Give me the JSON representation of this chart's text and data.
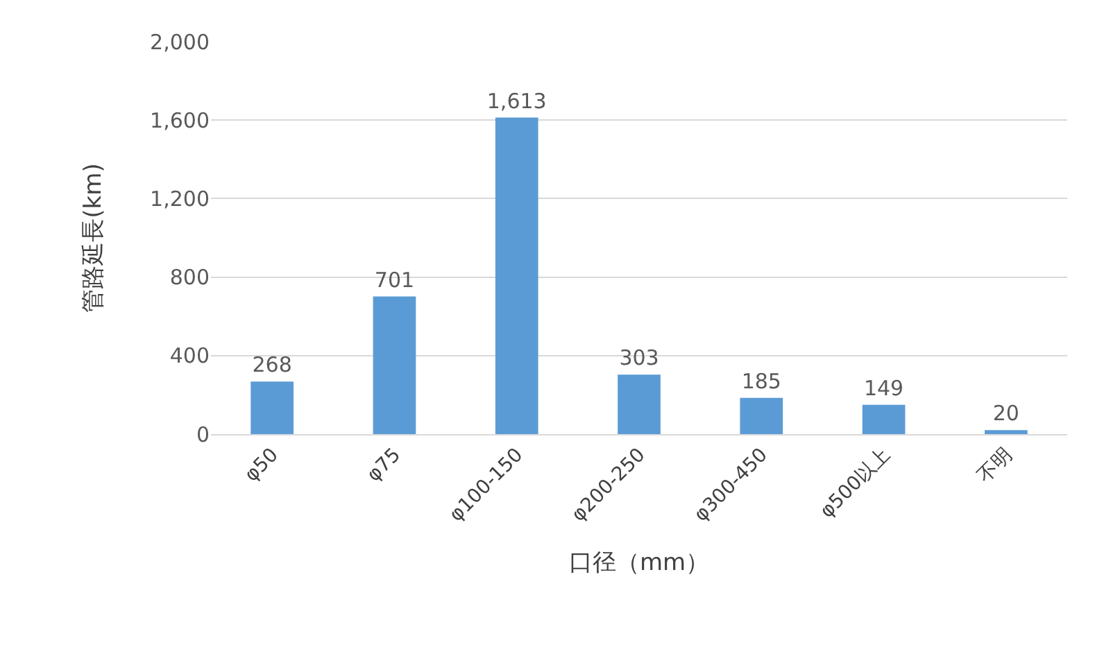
{
  "chart_data": {
    "type": "bar",
    "xlabel": "口径（mm）",
    "ylabel": "管路延長(km)",
    "categories": [
      "φ50",
      "φ75",
      "φ100-150",
      "φ200-250",
      "φ300-450",
      "φ500以上",
      "不明"
    ],
    "values": [
      268,
      701,
      1613,
      303,
      185,
      149,
      20
    ],
    "value_labels": [
      "268",
      "701",
      "1,613",
      "303",
      "185",
      "149",
      "20"
    ],
    "color": "#5b9bd5",
    "ylim": [
      0,
      2000
    ],
    "yticks": [
      0,
      {
        "value": 400,
        "label": "400"
      },
      {
        "value": 800,
        "label": "800"
      },
      {
        "value": 1200,
        "label": "1,200"
      },
      {
        "value": 1600,
        "label": "1,600"
      },
      {
        "value": 2000,
        "label": "2,000"
      }
    ],
    "grid": "y"
  }
}
